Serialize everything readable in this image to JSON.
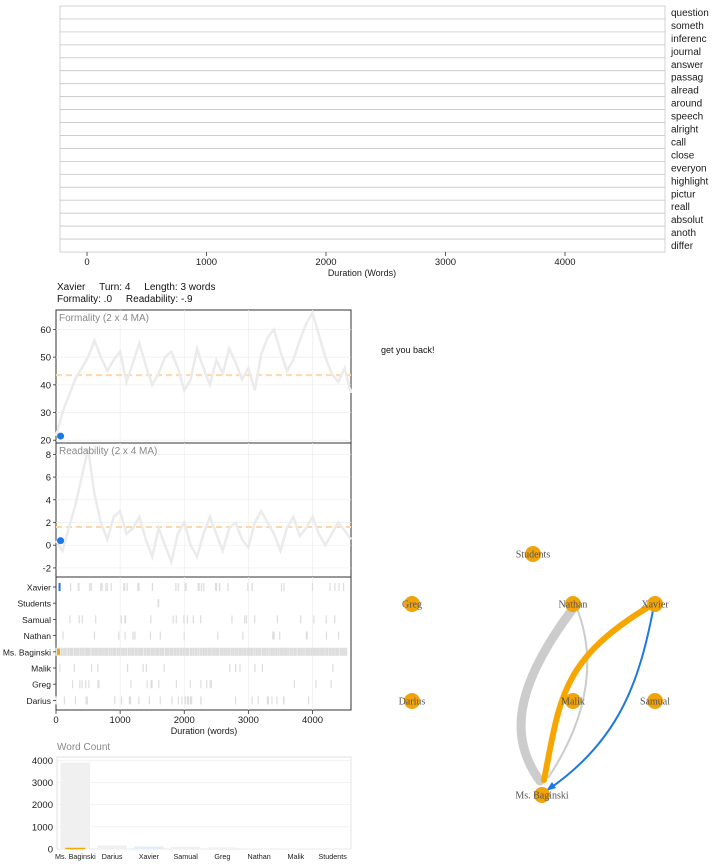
{
  "word_track": {
    "words": [
      "question",
      "someth",
      "inferenc",
      "journal",
      "answer",
      "passag",
      "alread",
      "around",
      "speech",
      "alright",
      "call",
      "close",
      "everyon",
      "highlight",
      "pictur",
      "reall",
      "absolut",
      "anoth",
      "differ"
    ],
    "x_ticks": [
      "0",
      "1000",
      "2000",
      "3000",
      "4000"
    ],
    "xlabel": "Duration (Words)"
  },
  "info": {
    "speaker": "Xavier",
    "turn": "Turn: 4",
    "length": "Length: 3 words",
    "formality": "Formality: .0",
    "readability": "Readability: -.9"
  },
  "utterance": "get you back!",
  "chart_data": [
    {
      "type": "line",
      "title": "Formality (2 x 4 MA)",
      "xlim": [
        0,
        4600
      ],
      "ylim": [
        19,
        67
      ],
      "y_ticks": [
        "20",
        "30",
        "40",
        "50",
        "60"
      ],
      "mean": 43.5,
      "current": {
        "x": 40,
        "y": 21.5
      },
      "x": [
        0,
        100,
        200,
        300,
        400,
        500,
        600,
        700,
        800,
        900,
        1000,
        1100,
        1200,
        1300,
        1400,
        1500,
        1600,
        1700,
        1800,
        1900,
        2000,
        2100,
        2200,
        2300,
        2400,
        2500,
        2600,
        2700,
        2800,
        2900,
        3000,
        3100,
        3200,
        3300,
        3400,
        3500,
        3600,
        3700,
        3800,
        3900,
        4000,
        4100,
        4200,
        4300,
        4400,
        4500,
        4600
      ],
      "y": [
        21.5,
        30,
        36,
        42,
        46,
        50,
        56,
        50,
        45,
        49,
        52,
        41,
        48,
        55,
        47,
        40,
        44,
        50,
        52,
        46,
        38,
        42,
        53,
        46,
        40,
        49,
        44,
        53,
        48,
        42,
        46,
        38,
        51,
        57,
        60,
        52,
        45,
        49,
        56,
        62,
        66,
        58,
        50,
        44,
        41,
        46,
        37
      ]
    },
    {
      "type": "line",
      "title": "Readability (2 x 4 MA)",
      "xlim": [
        0,
        4600
      ],
      "ylim": [
        -2.8,
        9
      ],
      "y_ticks": [
        "-2",
        "0",
        "2",
        "4",
        "6",
        "8"
      ],
      "mean": 1.6,
      "current": {
        "x": 40,
        "y": 0.4
      },
      "x": [
        0,
        100,
        200,
        300,
        400,
        500,
        600,
        700,
        800,
        900,
        1000,
        1100,
        1200,
        1300,
        1400,
        1500,
        1600,
        1700,
        1800,
        1900,
        2000,
        2100,
        2200,
        2300,
        2400,
        2500,
        2600,
        2700,
        2800,
        2900,
        3000,
        3100,
        3200,
        3300,
        3400,
        3500,
        3600,
        3700,
        3800,
        3900,
        4000,
        4100,
        4200,
        4300,
        4400,
        4500,
        4600
      ],
      "y": [
        0.4,
        -0.5,
        1.5,
        3.5,
        6,
        8.5,
        4.5,
        2,
        0.5,
        2.5,
        3,
        1,
        1.5,
        2.5,
        0.5,
        -1,
        1.5,
        0,
        -1.5,
        1,
        2,
        0,
        -1,
        1,
        2.5,
        1,
        -0.5,
        1.5,
        2,
        0.5,
        -0.2,
        2,
        3,
        2,
        1,
        -0.5,
        1.5,
        2.5,
        0.8,
        1.5,
        2.5,
        1,
        0,
        1,
        2,
        1.3,
        0.5
      ]
    },
    {
      "type": "scatter",
      "title": "",
      "xlabel": "Duration (words)",
      "x_ticks": [
        "0",
        "1000",
        "2000",
        "3000",
        "4000"
      ],
      "xlim": [
        0,
        4600
      ],
      "speakers": [
        "Xavier",
        "Students",
        "Samual",
        "Nathan",
        "Ms. Baginski",
        "Malik",
        "Greg",
        "Darius"
      ],
      "highlight": {
        "speaker": "Xavier",
        "x": 40
      }
    },
    {
      "type": "bar",
      "title": "Word Count",
      "categories": [
        "Ms. Baginski",
        "Darius",
        "Xavier",
        "Samual",
        "Greg",
        "Nathan",
        "Malik",
        "Students"
      ],
      "values": [
        3900,
        160,
        120,
        90,
        70,
        15,
        10,
        5
      ],
      "ylim": [
        0,
        4150
      ],
      "y_ticks": [
        "0",
        "1000",
        "2000",
        "3000",
        "4000"
      ]
    }
  ],
  "network": {
    "nodes": [
      "Students",
      "Greg",
      "Nathan",
      "Xavier",
      "Darius",
      "Malik",
      "Samual",
      "Ms. Baginski"
    ],
    "node_color": "#f0a30a",
    "edge_highlight_color": "#f7a600",
    "edge_current_color": "#1f78e0",
    "edge_other_color": "#cccccc"
  },
  "colors": {
    "line": "#ebebeb",
    "mean": "#ffd8a8",
    "current": "#1f78e0",
    "grid": "#ececec",
    "bar": "#f0f0f0"
  }
}
